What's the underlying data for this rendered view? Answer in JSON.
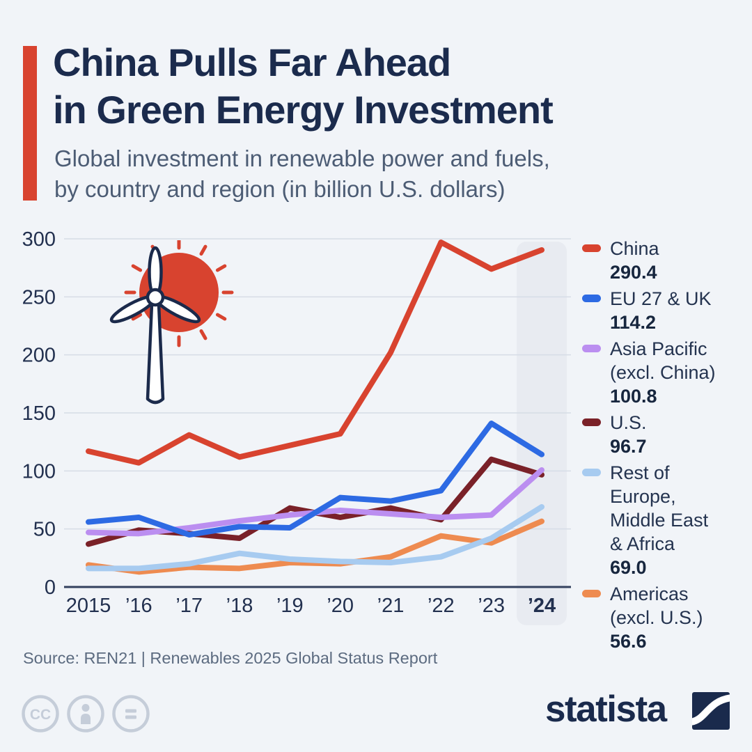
{
  "header": {
    "title": "China Pulls Far Ahead\nin Green Energy Investment",
    "subtitle": "Global investment in renewable power and fuels,\nby country and region (in billion U.S. dollars)"
  },
  "chart_data": {
    "type": "line",
    "title": "Global investment in renewable power and fuels, by country and region (in billion U.S. dollars)",
    "x_tick_labels": [
      "2015",
      "’16",
      "’17",
      "’18",
      "’19",
      "’20",
      "’21",
      "’22",
      "’23",
      "’24"
    ],
    "y_ticks": [
      0,
      50,
      100,
      150,
      200,
      250,
      300
    ],
    "ylim": [
      0,
      300
    ],
    "grid": true,
    "legend_position": "right",
    "highlighted_x": "’24",
    "series": [
      {
        "name": "China",
        "display_value": "290.4",
        "color": "#d8432f",
        "values": [
          117,
          107,
          131,
          112,
          122,
          132,
          202,
          297,
          274,
          290.4
        ]
      },
      {
        "name": "EU 27 & UK",
        "display_value": "114.2",
        "color": "#2d6ae3",
        "values": [
          56,
          60,
          45,
          52,
          51,
          77,
          74,
          83,
          141,
          114.2
        ]
      },
      {
        "name": "Asia Pacific\n(excl. China)",
        "display_value": "100.8",
        "color": "#bb8ef0",
        "values": [
          47,
          46,
          51,
          57,
          62,
          66,
          63,
          60,
          62,
          100.8
        ]
      },
      {
        "name": "U.S.",
        "display_value": "96.7",
        "color": "#7a2128",
        "values": [
          37,
          49,
          46,
          42,
          68,
          60,
          68,
          58,
          110,
          96.7
        ]
      },
      {
        "name": "Rest of Europe,\nMiddle East\n& Africa",
        "display_value": "69.0",
        "color": "#a7cbf0",
        "values": [
          16,
          16,
          20,
          29,
          24,
          22,
          21,
          26,
          42,
          69.0
        ]
      },
      {
        "name": "Americas\n(excl. U.S.)",
        "display_value": "56.6",
        "color": "#ee8b50",
        "values": [
          19,
          13,
          17,
          16,
          21,
          20,
          26,
          44,
          38,
          56.6
        ]
      }
    ]
  },
  "footer": {
    "source": "Source: REN21 | Renewables 2025 Global Status Report",
    "brand": "statista"
  },
  "colors": {
    "background": "#f1f4f8",
    "accent_red": "#d8432f",
    "title_text": "#1b2b4d",
    "subtitle_text": "#4c5c74",
    "axis_text": "#22304f",
    "grid_line": "#d6dce6",
    "zero_line": "#33415e",
    "highlight_band": "#e8ebf1",
    "source_text": "#5c6b80",
    "brand_navy": "#1a2a4c",
    "icon_gray": "#c5cdd9",
    "illustration_outline": "#1b2a4b"
  }
}
